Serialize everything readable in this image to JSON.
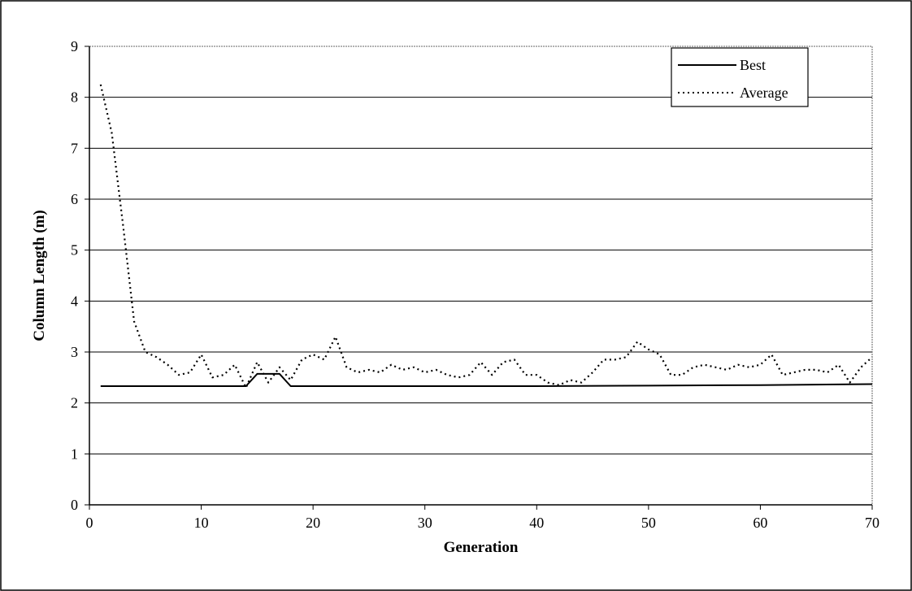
{
  "chart_data": {
    "type": "line",
    "title": "",
    "xlabel": "Generation",
    "ylabel": "Column Length (m)",
    "xlim": [
      0,
      70
    ],
    "ylim": [
      0,
      9
    ],
    "x_ticks": [
      0,
      10,
      20,
      30,
      40,
      50,
      60,
      70
    ],
    "y_ticks": [
      0,
      1,
      2,
      3,
      4,
      5,
      6,
      7,
      8,
      9
    ],
    "grid": "horizontal",
    "legend_position": "top-right",
    "series": [
      {
        "name": "Best",
        "style": "solid",
        "color": "#000000",
        "points": [
          [
            1,
            2.33
          ],
          [
            13,
            2.33
          ],
          [
            14,
            2.33
          ],
          [
            15,
            2.57
          ],
          [
            16,
            2.57
          ],
          [
            17,
            2.57
          ],
          [
            18,
            2.33
          ],
          [
            30,
            2.33
          ],
          [
            40,
            2.33
          ],
          [
            50,
            2.34
          ],
          [
            60,
            2.35
          ],
          [
            70,
            2.37
          ]
        ]
      },
      {
        "name": "Average",
        "style": "dotted",
        "color": "#000000",
        "points": [
          [
            1,
            8.25
          ],
          [
            2,
            7.3
          ],
          [
            3,
            5.5
          ],
          [
            4,
            3.6
          ],
          [
            5,
            3.0
          ],
          [
            6,
            2.9
          ],
          [
            7,
            2.75
          ],
          [
            8,
            2.55
          ],
          [
            9,
            2.6
          ],
          [
            10,
            2.95
          ],
          [
            11,
            2.5
          ],
          [
            12,
            2.55
          ],
          [
            13,
            2.75
          ],
          [
            14,
            2.3
          ],
          [
            15,
            2.8
          ],
          [
            16,
            2.4
          ],
          [
            17,
            2.7
          ],
          [
            18,
            2.45
          ],
          [
            19,
            2.85
          ],
          [
            20,
            2.95
          ],
          [
            21,
            2.85
          ],
          [
            22,
            3.3
          ],
          [
            23,
            2.7
          ],
          [
            24,
            2.6
          ],
          [
            25,
            2.65
          ],
          [
            26,
            2.6
          ],
          [
            27,
            2.75
          ],
          [
            28,
            2.65
          ],
          [
            29,
            2.7
          ],
          [
            30,
            2.6
          ],
          [
            31,
            2.65
          ],
          [
            32,
            2.55
          ],
          [
            33,
            2.5
          ],
          [
            34,
            2.55
          ],
          [
            35,
            2.8
          ],
          [
            36,
            2.55
          ],
          [
            37,
            2.8
          ],
          [
            38,
            2.85
          ],
          [
            39,
            2.55
          ],
          [
            40,
            2.55
          ],
          [
            41,
            2.4
          ],
          [
            42,
            2.35
          ],
          [
            43,
            2.45
          ],
          [
            44,
            2.4
          ],
          [
            45,
            2.6
          ],
          [
            46,
            2.85
          ],
          [
            47,
            2.85
          ],
          [
            48,
            2.9
          ],
          [
            49,
            3.2
          ],
          [
            50,
            3.05
          ],
          [
            51,
            2.95
          ],
          [
            52,
            2.55
          ],
          [
            53,
            2.55
          ],
          [
            54,
            2.7
          ],
          [
            55,
            2.75
          ],
          [
            56,
            2.7
          ],
          [
            57,
            2.65
          ],
          [
            58,
            2.75
          ],
          [
            59,
            2.7
          ],
          [
            60,
            2.75
          ],
          [
            61,
            2.95
          ],
          [
            62,
            2.55
          ],
          [
            63,
            2.6
          ],
          [
            64,
            2.65
          ],
          [
            65,
            2.65
          ],
          [
            66,
            2.6
          ],
          [
            67,
            2.75
          ],
          [
            68,
            2.4
          ],
          [
            69,
            2.7
          ],
          [
            70,
            2.9
          ]
        ]
      }
    ]
  }
}
